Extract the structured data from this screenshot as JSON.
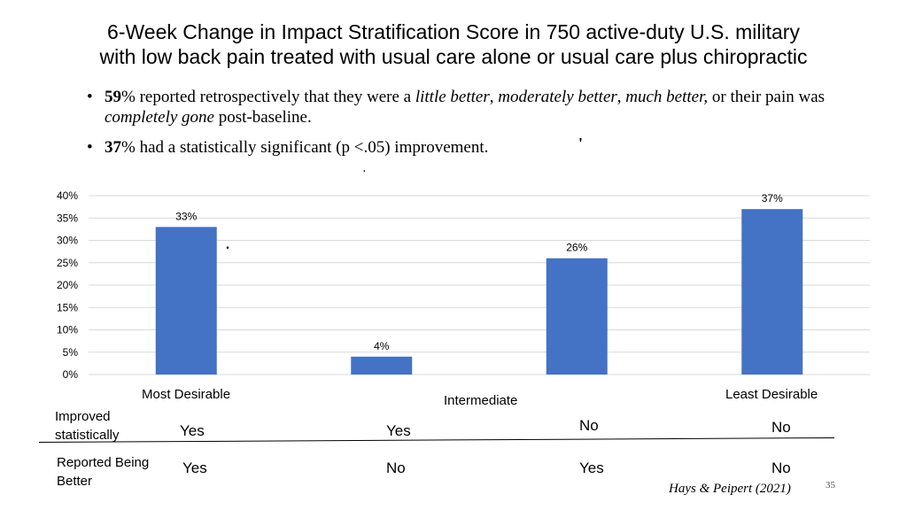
{
  "title": {
    "line1": "6-Week Change in Impact Stratification Score in 750 active-duty U.S. military",
    "line2": "with low back pain treated with usual care alone or usual care plus chiropractic"
  },
  "bullets": [
    {
      "bullet": "•",
      "bold": "59",
      "pct": "%",
      "text1": " reported retrospectively that they were a ",
      "it1": "little better",
      "sep1": ", ",
      "it2": "moderately better",
      "sep2": ", ",
      "it3": "much better,",
      "text2": " or their pain was ",
      "it4": "completely gone",
      "text3": " post-baseline."
    },
    {
      "bullet": "•",
      "bold": "37",
      "pct": "%",
      "text1": " had a statistically significant (p <.05) improvement."
    }
  ],
  "chart_data": {
    "type": "bar",
    "categories": [
      "Most Desirable",
      "",
      "",
      "Least Desirable"
    ],
    "values": [
      33,
      4,
      26,
      37
    ],
    "data_labels": [
      "33%",
      "4%",
      "26%",
      "37%"
    ],
    "ylim": [
      0,
      40
    ],
    "yticks": [
      "0%",
      "5%",
      "10%",
      "15%",
      "20%",
      "25%",
      "30%",
      "35%",
      "40%"
    ],
    "ytick_values": [
      0,
      5,
      10,
      15,
      20,
      25,
      30,
      35,
      40
    ],
    "xlabel_middle": "Intermediate",
    "bar_color": "#4472C4",
    "grid_color": "#D9D9D9",
    "grid": true
  },
  "table": {
    "row1_label": "Improved statistically",
    "row2_label": "Reported Being Better",
    "row1": [
      "Yes",
      "Yes",
      "No",
      "No"
    ],
    "row2": [
      "Yes",
      "No",
      "Yes",
      "No"
    ]
  },
  "source": "Hays & Peipert (2021)",
  "page_number": "35"
}
